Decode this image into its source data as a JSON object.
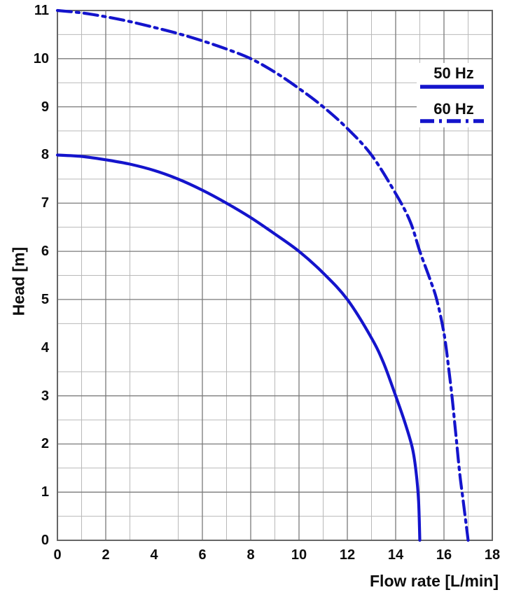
{
  "chart": {
    "colors": {
      "curve_blue": "#1414cc",
      "grid_minor": "#b9b9b9",
      "grid_major": "#7a7a7a",
      "plot_border": "#666666",
      "text": "#0d0d0d",
      "background": "#ffffff",
      "legend_background": "#ffffff"
    },
    "y_axis": {
      "title": "Head [m]",
      "tick_labels": [
        "0",
        "1",
        "2",
        "3",
        "4",
        "5",
        "6",
        "7",
        "8",
        "9",
        "10",
        "11"
      ],
      "tick_values": [
        0,
        1,
        2,
        3,
        4,
        5,
        6,
        7,
        8,
        9,
        10,
        11
      ]
    },
    "x_axis": {
      "title": "Flow rate [L/min]",
      "tick_labels": [
        "0",
        "2",
        "4",
        "6",
        "8",
        "10",
        "12",
        "14",
        "16",
        "18"
      ],
      "tick_values": [
        0,
        2,
        4,
        6,
        8,
        10,
        12,
        14,
        16,
        18
      ]
    },
    "legend": {
      "entries": [
        {
          "label": "50 Hz",
          "line_style": "solid"
        },
        {
          "label": "60 Hz",
          "line_style": "dash-dot"
        }
      ],
      "position": "top-right"
    }
  },
  "chart_data": {
    "type": "line",
    "title": "",
    "xlabel": "Flow rate [L/min]",
    "ylabel": "Head [m]",
    "xlim": [
      0,
      18
    ],
    "ylim": [
      0,
      11
    ],
    "x_tick_step": 2,
    "y_tick_step": 1,
    "grid": {
      "on": true,
      "vertical_minor_x": [
        1,
        3,
        5,
        7,
        9,
        11,
        13,
        15,
        17
      ],
      "vertical_major_x": [
        2,
        6,
        8,
        10,
        12,
        14,
        16
      ],
      "horizontal_minor_y": [
        0.5,
        1.5,
        2.5,
        3.5,
        4.5,
        5.5,
        6.5,
        7.5,
        8.5,
        9.5,
        10.5
      ],
      "horizontal_major_y": [
        1,
        2,
        3,
        5,
        6,
        7,
        8,
        9,
        10
      ],
      "missing_gridlines_note": "no gridline at x=4 and no gridline at y=4"
    },
    "legend_position": "top-right",
    "series": [
      {
        "name": "50 Hz",
        "line_style": "solid",
        "color": "#1414cc",
        "points": [
          [
            0,
            8.0
          ],
          [
            1,
            7.97
          ],
          [
            2,
            7.9
          ],
          [
            3,
            7.81
          ],
          [
            4,
            7.68
          ],
          [
            5,
            7.5
          ],
          [
            6,
            7.27
          ],
          [
            7,
            7.0
          ],
          [
            8,
            6.7
          ],
          [
            9,
            6.36
          ],
          [
            10,
            6.0
          ],
          [
            11,
            5.55
          ],
          [
            12,
            5.0
          ],
          [
            13,
            4.2
          ],
          [
            13.5,
            3.68
          ],
          [
            14,
            3.0
          ],
          [
            14.4,
            2.42
          ],
          [
            14.7,
            1.9
          ],
          [
            14.85,
            1.4
          ],
          [
            14.95,
            0.8
          ],
          [
            15,
            0
          ]
        ]
      },
      {
        "name": "60 Hz",
        "line_style": "dash-dot",
        "color": "#1414cc",
        "points": [
          [
            0,
            11.0
          ],
          [
            1,
            10.95
          ],
          [
            2,
            10.87
          ],
          [
            3,
            10.77
          ],
          [
            4,
            10.65
          ],
          [
            5,
            10.52
          ],
          [
            6,
            10.37
          ],
          [
            7,
            10.2
          ],
          [
            8,
            10.0
          ],
          [
            9,
            9.72
          ],
          [
            10,
            9.38
          ],
          [
            11,
            9.0
          ],
          [
            12,
            8.55
          ],
          [
            13,
            8.0
          ],
          [
            14,
            7.2
          ],
          [
            14.6,
            6.62
          ],
          [
            15,
            6.0
          ],
          [
            15.4,
            5.45
          ],
          [
            15.7,
            5.0
          ],
          [
            16,
            4.3
          ],
          [
            16.2,
            3.55
          ],
          [
            16.35,
            2.9
          ],
          [
            16.5,
            2.15
          ],
          [
            16.65,
            1.4
          ],
          [
            16.8,
            0.8
          ],
          [
            17,
            0
          ]
        ]
      }
    ]
  }
}
